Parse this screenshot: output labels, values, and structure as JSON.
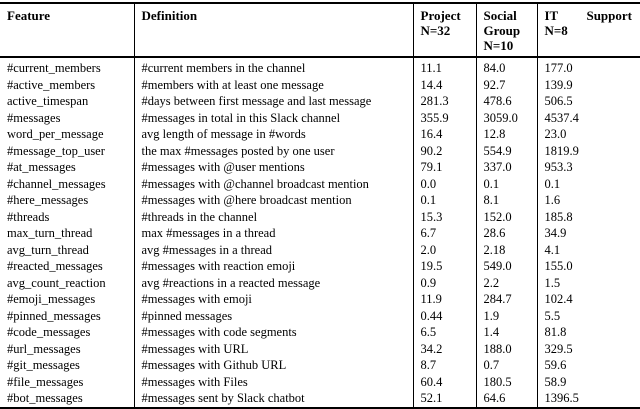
{
  "table": {
    "columns": {
      "feature": "Feature",
      "definition": "Definition",
      "project": {
        "label": "Project",
        "n": "N=32"
      },
      "social": {
        "label": "Social Group",
        "n": "N=10"
      },
      "it": {
        "label_left": "IT",
        "label_right": "Support",
        "n": "N=8"
      }
    },
    "rows": [
      {
        "feature": "#current_members",
        "definition": "#current members in the channel",
        "project": "11.1",
        "social": "84.0",
        "it": "177.0"
      },
      {
        "feature": "#active_members",
        "definition": "#members with at least one message",
        "project": "14.4",
        "social": "92.7",
        "it": "139.9"
      },
      {
        "feature": "active_timespan",
        "definition": "#days between first message and last message",
        "project": "281.3",
        "social": "478.6",
        "it": "506.5"
      },
      {
        "feature": "#messages",
        "definition": "#messages in total in this Slack channel",
        "project": "355.9",
        "social": "3059.0",
        "it": "4537.4"
      },
      {
        "feature": "word_per_message",
        "definition": "avg length of message in #words",
        "project": "16.4",
        "social": "12.8",
        "it": "23.0"
      },
      {
        "feature": "#message_top_user",
        "definition": "the max #messages posted by one user",
        "project": "90.2",
        "social": "554.9",
        "it": "1819.9"
      },
      {
        "feature": "#at_messages",
        "definition": "#messages with @user mentions",
        "project": "79.1",
        "social": "337.0",
        "it": "953.3"
      },
      {
        "feature": "#channel_messages",
        "definition": "#messages with @channel broadcast mention",
        "project": "0.0",
        "social": "0.1",
        "it": "0.1"
      },
      {
        "feature": "#here_messages",
        "definition": "#messages with @here broadcast mention",
        "project": "0.1",
        "social": "8.1",
        "it": "1.6"
      },
      {
        "feature": "#threads",
        "definition": "#threads in the channel",
        "project": "15.3",
        "social": "152.0",
        "it": "185.8"
      },
      {
        "feature": "max_turn_thread",
        "definition": "max #messages in a thread",
        "project": "6.7",
        "social": "28.6",
        "it": "34.9"
      },
      {
        "feature": "avg_turn_thread",
        "definition": "avg #messages in a thread",
        "project": "2.0",
        "social": "2.18",
        "it": "4.1"
      },
      {
        "feature": "#reacted_messages",
        "definition": "#messages with reaction emoji",
        "project": "19.5",
        "social": "549.0",
        "it": "155.0"
      },
      {
        "feature": "avg_count_reaction",
        "definition": "avg #reactions in a reacted message",
        "project": "0.9",
        "social": "2.2",
        "it": "1.5"
      },
      {
        "feature": "#emoji_messages",
        "definition": "#messages with emoji",
        "project": "11.9",
        "social": "284.7",
        "it": "102.4"
      },
      {
        "feature": "#pinned_messages",
        "definition": "#pinned messages",
        "project": "0.44",
        "social": "1.9",
        "it": "5.5"
      },
      {
        "feature": "#code_messages",
        "definition": "#messages with code segments",
        "project": "6.5",
        "social": "1.4",
        "it": "81.8"
      },
      {
        "feature": "#url_messages",
        "definition": "#messages with URL",
        "project": "34.2",
        "social": "188.0",
        "it": "329.5"
      },
      {
        "feature": "#git_messages",
        "definition": "#messages with Github URL",
        "project": "8.7",
        "social": "0.7",
        "it": "59.6"
      },
      {
        "feature": "#file_messages",
        "definition": "#messages with Files",
        "project": "60.4",
        "social": "180.5",
        "it": "58.9"
      },
      {
        "feature": "#bot_messages",
        "definition": "#messages sent by Slack chatbot",
        "project": "52.1",
        "social": "64.6",
        "it": "1396.5"
      }
    ]
  }
}
